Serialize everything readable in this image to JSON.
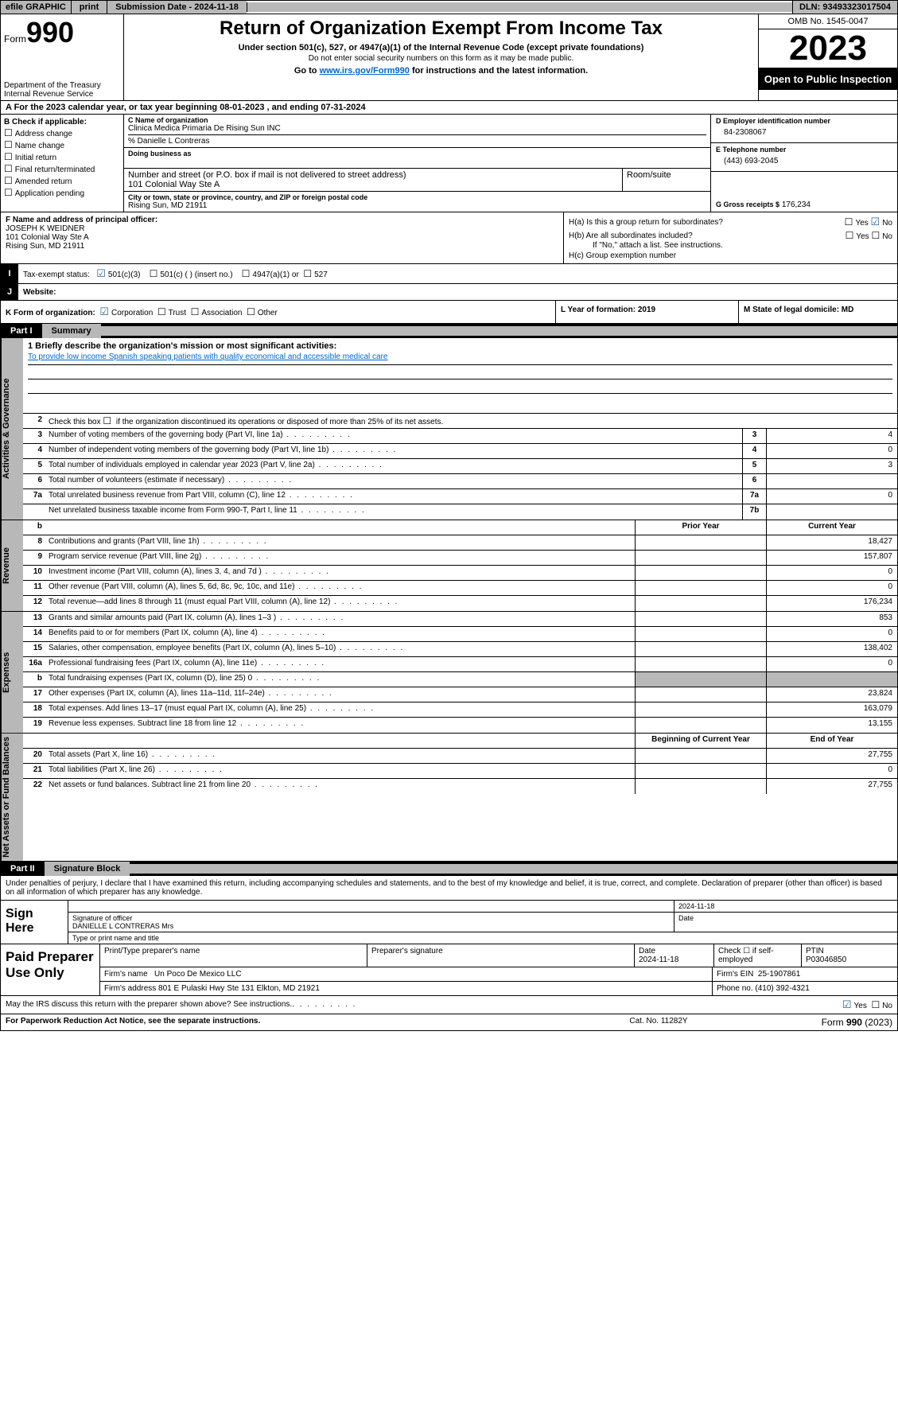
{
  "topbar": {
    "efile": "efile GRAPHIC",
    "print": "print",
    "submission": "Submission Date - 2024-11-18",
    "dln": "DLN: 93493323017504"
  },
  "header": {
    "form_prefix": "Form",
    "form_num": "990",
    "dept1": "Department of the Treasury",
    "dept2": "Internal Revenue Service",
    "title": "Return of Organization Exempt From Income Tax",
    "sub1": "Under section 501(c), 527, or 4947(a)(1) of the Internal Revenue Code (except private foundations)",
    "sub2": "Do not enter social security numbers on this form as it may be made public.",
    "sub3_pre": "Go to ",
    "sub3_link": "www.irs.gov/Form990",
    "sub3_post": " for instructions and the latest information.",
    "omb": "OMB No. 1545-0047",
    "year": "2023",
    "open": "Open to Public Inspection"
  },
  "row_a": "A For the 2023 calendar year, or tax year beginning 08-01-2023   , and ending 07-31-2024",
  "col_b": {
    "label": "B Check if applicable:",
    "items": [
      "Address change",
      "Name change",
      "Initial return",
      "Final return/terminated",
      "Amended return",
      "Application pending"
    ]
  },
  "col_c": {
    "name_lbl": "C Name of organization",
    "name": "Clinica Medica Primaria De Rising Sun INC",
    "care": "% Danielle L Contreras",
    "dba_lbl": "Doing business as",
    "addr_lbl": "Number and street (or P.O. box if mail is not delivered to street address)",
    "room_lbl": "Room/suite",
    "addr": "101 Colonial Way Ste A",
    "city_lbl": "City or town, state or province, country, and ZIP or foreign postal code",
    "city": "Rising Sun, MD  21911"
  },
  "col_d": {
    "ein_lbl": "D Employer identification number",
    "ein": "84-2308067",
    "tel_lbl": "E Telephone number",
    "tel": "(443) 693-2045",
    "gross_lbl": "G Gross receipts $",
    "gross": "176,234"
  },
  "row_f": {
    "lbl": "F  Name and address of principal officer:",
    "name": "JOSEPH K WEIDNER",
    "addr1": "101 Colonial Way Ste A",
    "addr2": "Rising Sun, MD  21911"
  },
  "row_h": {
    "ha": "H(a)  Is this a group return for subordinates?",
    "hb": "H(b)  Are all subordinates included?",
    "hb2": "If \"No,\" attach a list. See instructions.",
    "hc": "H(c)  Group exemption number",
    "yes": "Yes",
    "no": "No"
  },
  "row_i": {
    "lbl": "Tax-exempt status:",
    "o1": "501(c)(3)",
    "o2": "501(c) (  ) (insert no.)",
    "o3": "4947(a)(1) or",
    "o4": "527"
  },
  "row_j": {
    "lbl": "Website:",
    "val": " "
  },
  "row_k": {
    "k": "K Form of organization:",
    "o1": "Corporation",
    "o2": "Trust",
    "o3": "Association",
    "o4": "Other",
    "l": "L Year of formation: 2019",
    "m": "M State of legal domicile: MD"
  },
  "part1": {
    "num": "Part I",
    "title": "Summary"
  },
  "mission": {
    "lbl": "1   Briefly describe the organization's mission or most significant activities:",
    "text": "To provide low income Spanish speaking patients with quality economical and accessible medical care"
  },
  "line2": "Check this box    if the organization discontinued its operations or disposed of more than 25% of its net assets.",
  "sections": {
    "gov": "Activities & Governance",
    "rev": "Revenue",
    "exp": "Expenses",
    "net": "Net Assets or Fund Balances"
  },
  "gov_rows": [
    {
      "n": "3",
      "d": "Number of voting members of the governing body (Part VI, line 1a)",
      "c": "3",
      "v": "4"
    },
    {
      "n": "4",
      "d": "Number of independent voting members of the governing body (Part VI, line 1b)",
      "c": "4",
      "v": "0"
    },
    {
      "n": "5",
      "d": "Total number of individuals employed in calendar year 2023 (Part V, line 2a)",
      "c": "5",
      "v": "3"
    },
    {
      "n": "6",
      "d": "Total number of volunteers (estimate if necessary)",
      "c": "6",
      "v": ""
    },
    {
      "n": "7a",
      "d": "Total unrelated business revenue from Part VIII, column (C), line 12",
      "c": "7a",
      "v": "0"
    },
    {
      "n": "",
      "d": "Net unrelated business taxable income from Form 990-T, Part I, line 11",
      "c": "7b",
      "v": ""
    }
  ],
  "col_hdrs": {
    "prior": "Prior Year",
    "current": "Current Year",
    "begin": "Beginning of Current Year",
    "end": "End of Year"
  },
  "rev_rows": [
    {
      "n": "8",
      "d": "Contributions and grants (Part VIII, line 1h)",
      "p": "",
      "c": "18,427"
    },
    {
      "n": "9",
      "d": "Program service revenue (Part VIII, line 2g)",
      "p": "",
      "c": "157,807"
    },
    {
      "n": "10",
      "d": "Investment income (Part VIII, column (A), lines 3, 4, and 7d )",
      "p": "",
      "c": "0"
    },
    {
      "n": "11",
      "d": "Other revenue (Part VIII, column (A), lines 5, 6d, 8c, 9c, 10c, and 11e)",
      "p": "",
      "c": "0"
    },
    {
      "n": "12",
      "d": "Total revenue—add lines 8 through 11 (must equal Part VIII, column (A), line 12)",
      "p": "",
      "c": "176,234"
    }
  ],
  "exp_rows": [
    {
      "n": "13",
      "d": "Grants and similar amounts paid (Part IX, column (A), lines 1–3 )",
      "p": "",
      "c": "853"
    },
    {
      "n": "14",
      "d": "Benefits paid to or for members (Part IX, column (A), line 4)",
      "p": "",
      "c": "0"
    },
    {
      "n": "15",
      "d": "Salaries, other compensation, employee benefits (Part IX, column (A), lines 5–10)",
      "p": "",
      "c": "138,402"
    },
    {
      "n": "16a",
      "d": "Professional fundraising fees (Part IX, column (A), line 11e)",
      "p": "",
      "c": "0"
    },
    {
      "n": "b",
      "d": "Total fundraising expenses (Part IX, column (D), line 25) 0",
      "p": "grey",
      "c": "grey"
    },
    {
      "n": "17",
      "d": "Other expenses (Part IX, column (A), lines 11a–11d, 11f–24e)",
      "p": "",
      "c": "23,824"
    },
    {
      "n": "18",
      "d": "Total expenses. Add lines 13–17 (must equal Part IX, column (A), line 25)",
      "p": "",
      "c": "163,079"
    },
    {
      "n": "19",
      "d": "Revenue less expenses. Subtract line 18 from line 12",
      "p": "",
      "c": "13,155"
    }
  ],
  "net_rows": [
    {
      "n": "20",
      "d": "Total assets (Part X, line 16)",
      "p": "",
      "c": "27,755"
    },
    {
      "n": "21",
      "d": "Total liabilities (Part X, line 26)",
      "p": "",
      "c": "0"
    },
    {
      "n": "22",
      "d": "Net assets or fund balances. Subtract line 21 from line 20",
      "p": "",
      "c": "27,755"
    }
  ],
  "part2": {
    "num": "Part II",
    "title": "Signature Block"
  },
  "sig_text": "Under penalties of perjury, I declare that I have examined this return, including accompanying schedules and statements, and to the best of my knowledge and belief, it is true, correct, and complete. Declaration of preparer (other than officer) is based on all information of which preparer has any knowledge.",
  "sign": {
    "here": "Sign Here",
    "sig_lbl": "Signature of officer",
    "name": "DANIELLE L CONTRERAS  Mrs",
    "type_lbl": "Type or print name and title",
    "date": "2024-11-18",
    "date_lbl": "Date"
  },
  "paid": {
    "title": "Paid Preparer Use Only",
    "h1": "Print/Type preparer's name",
    "h2": "Preparer's signature",
    "h3_lbl": "Date",
    "h3": "2024-11-18",
    "h4": "Check ☐ if self-employed",
    "h5_lbl": "PTIN",
    "h5": "P03046850",
    "firm_name_lbl": "Firm's name",
    "firm_name": "Un Poco De Mexico LLC",
    "firm_ein_lbl": "Firm's EIN",
    "firm_ein": "25-1907861",
    "firm_addr_lbl": "Firm's address",
    "firm_addr": "801 E Pulaski Hwy Ste 131 Elkton, MD  21921",
    "phone_lbl": "Phone no.",
    "phone": "(410) 392-4321"
  },
  "discuss": {
    "q": "May the IRS discuss this return with the preparer shown above? See instructions.",
    "yes": "Yes",
    "no": "No"
  },
  "footer": {
    "f1": "For Paperwork Reduction Act Notice, see the separate instructions.",
    "f2": "Cat. No. 11282Y",
    "f3_pre": "Form ",
    "f3_num": "990",
    "f3_post": " (2023)"
  }
}
